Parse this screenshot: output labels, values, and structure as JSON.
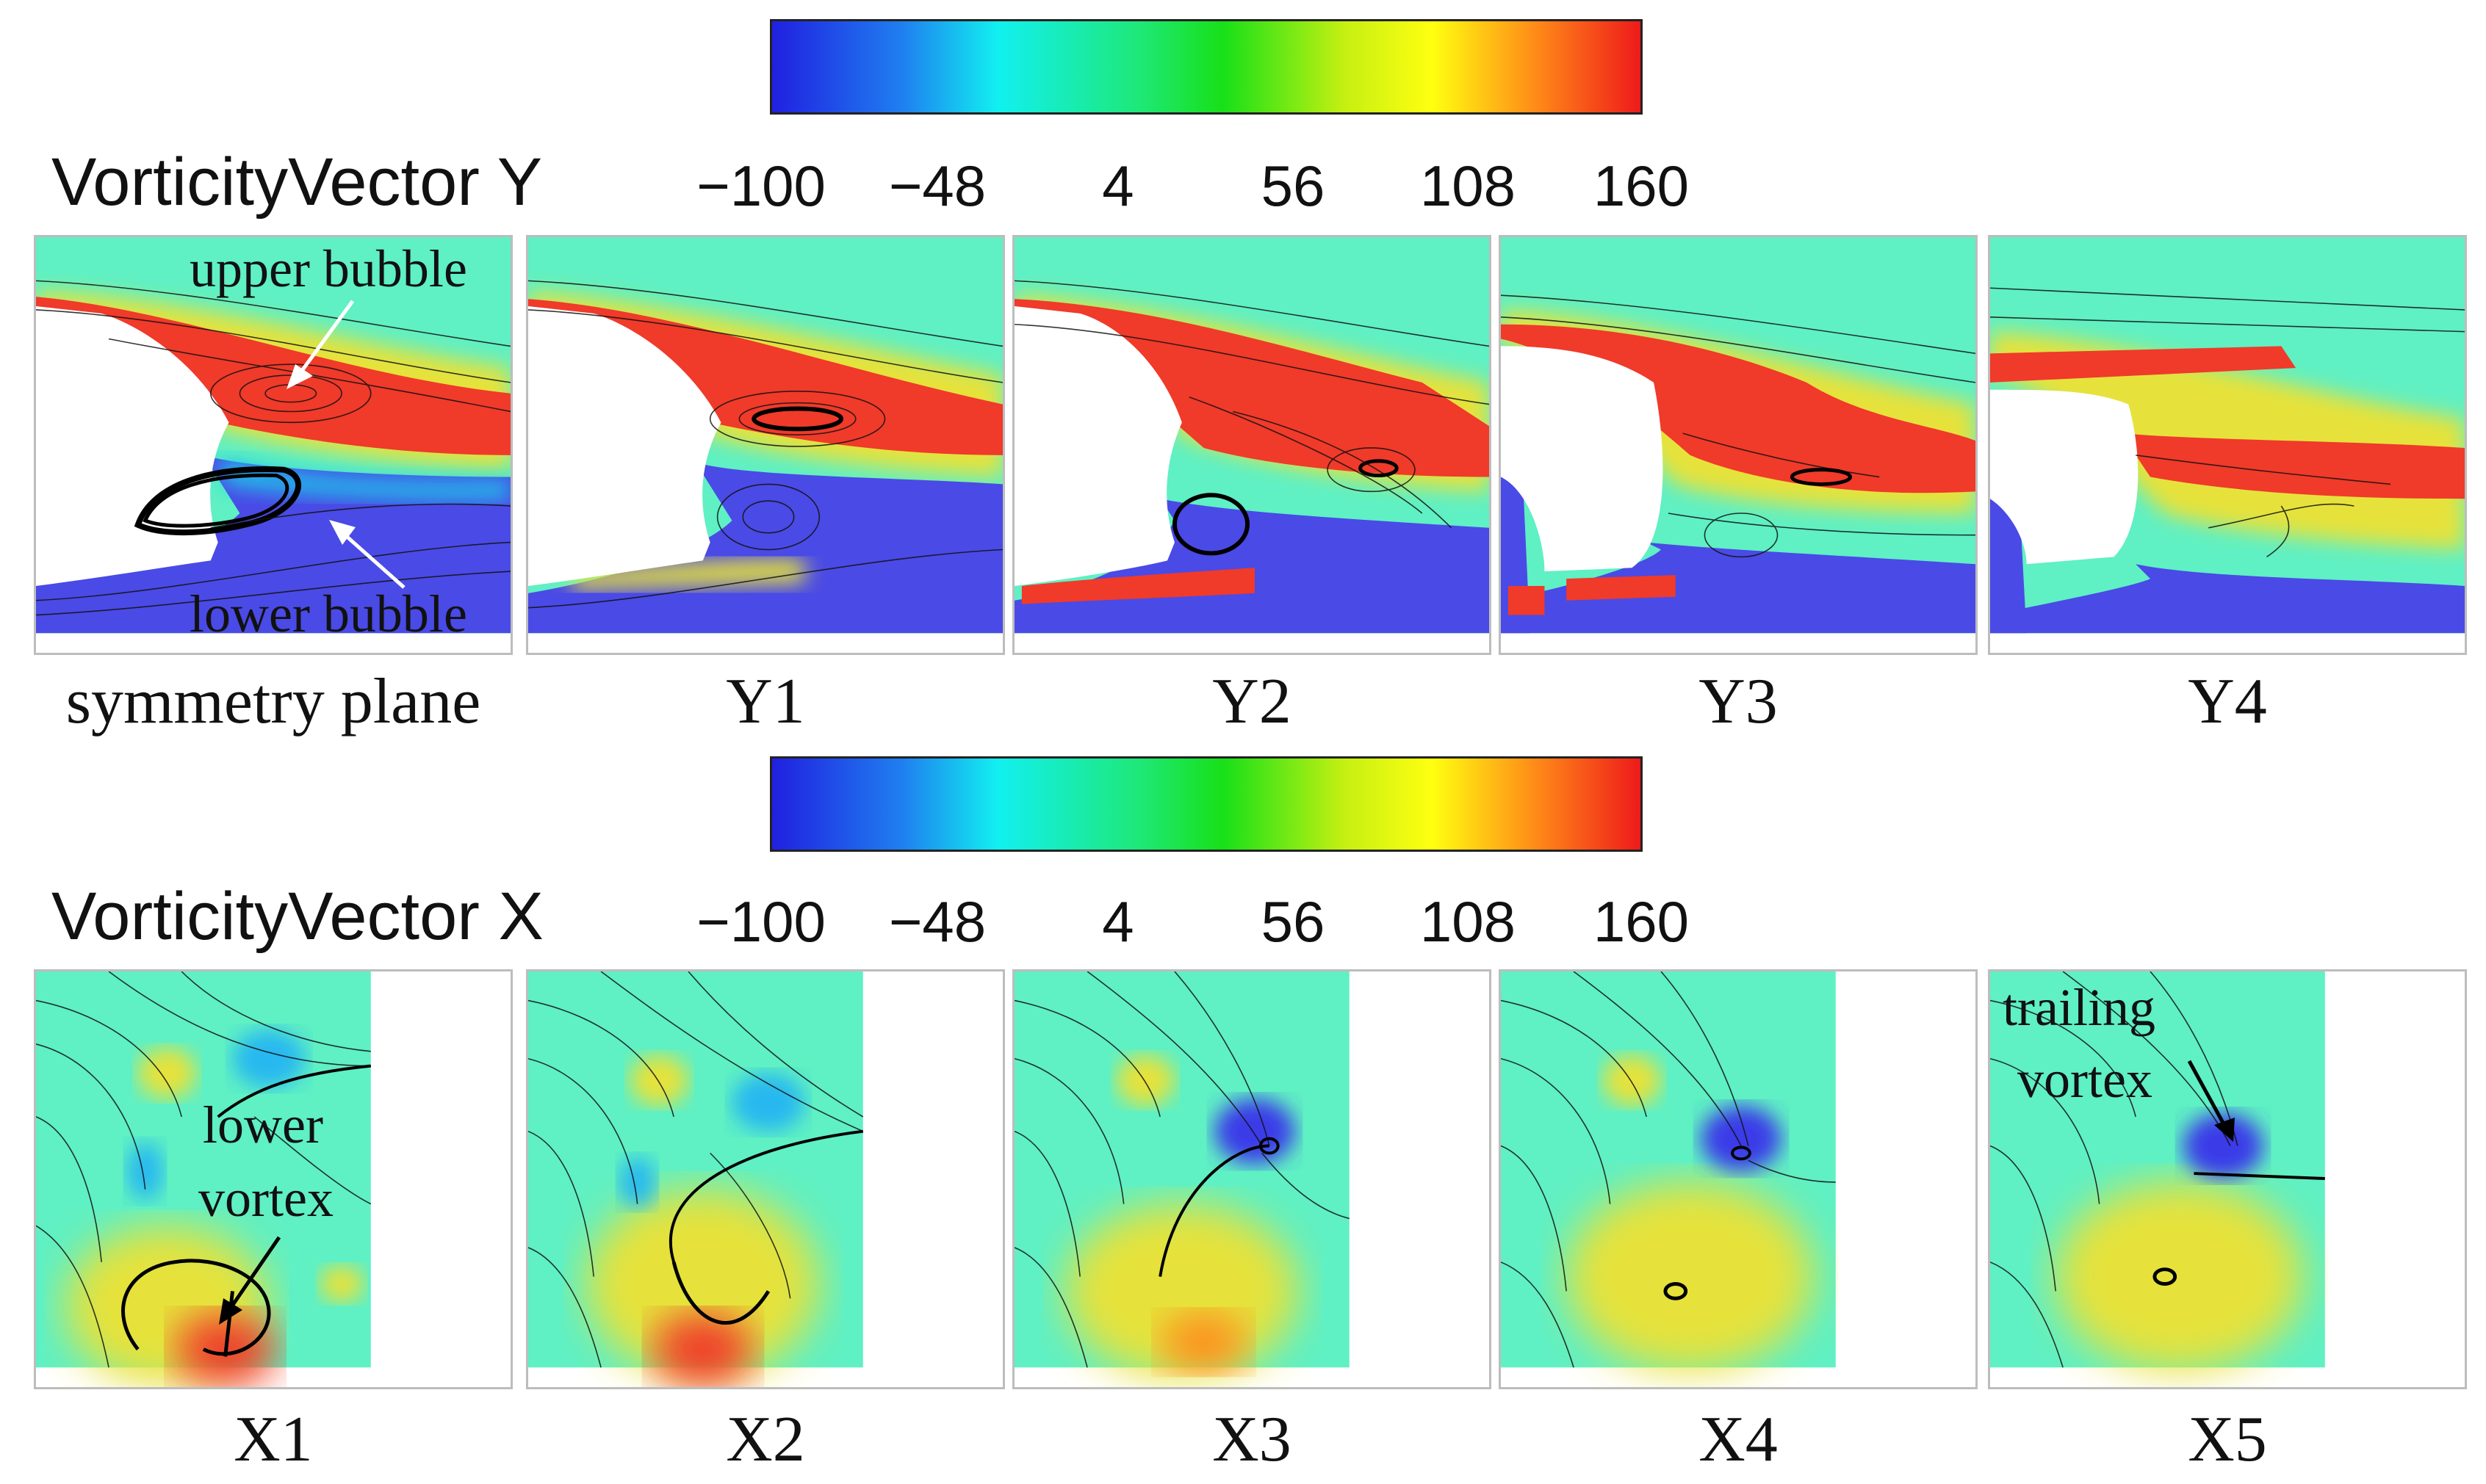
{
  "colorbar_y": {
    "title": "VorticityVector Y",
    "ticks": [
      "−100",
      "−48",
      "4",
      "56",
      "108",
      "160"
    ]
  },
  "colorbar_x": {
    "title": "VorticityVector X",
    "ticks": [
      "−100",
      "−48",
      "4",
      "56",
      "108",
      "160"
    ]
  },
  "colormap": [
    "#3a3ae8",
    "#25b8f0",
    "#22e6d6",
    "#1fe37f",
    "#3ee21a",
    "#c7f013",
    "#ffe51a",
    "#ff8a1f",
    "#f23a2a"
  ],
  "y_panels": [
    {
      "label": "symmetry plane"
    },
    {
      "label": "Y1"
    },
    {
      "label": "Y2"
    },
    {
      "label": "Y3"
    },
    {
      "label": "Y4"
    }
  ],
  "x_panels": [
    {
      "label": "X1"
    },
    {
      "label": "X2"
    },
    {
      "label": "X3"
    },
    {
      "label": "X4"
    },
    {
      "label": "X5"
    }
  ],
  "annotations": {
    "upper_bubble": "upper bubble",
    "lower_bubble": "lower bubble",
    "lower_vortex_1": "lower",
    "lower_vortex_2": "vortex",
    "trailing_vortex_1": "trailing",
    "trailing_vortex_2": "vortex"
  }
}
